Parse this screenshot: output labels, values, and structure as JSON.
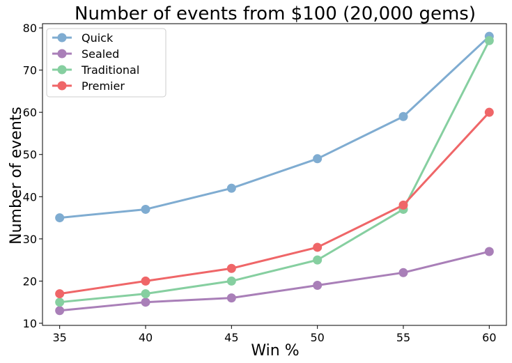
{
  "chart_data": {
    "type": "line",
    "title": "Number of events from $100 (20,000 gems)",
    "xlabel": "Win %",
    "ylabel": "Number of events",
    "x": [
      35,
      40,
      45,
      50,
      55,
      60
    ],
    "xlim": [
      34,
      61
    ],
    "ylim": [
      9.5,
      81
    ],
    "xticks": [
      "35",
      "40",
      "45",
      "50",
      "55",
      "60"
    ],
    "yticks": [
      "10",
      "20",
      "30",
      "40",
      "50",
      "60",
      "70",
      "80"
    ],
    "grid": false,
    "legend_position": "top-left",
    "series": [
      {
        "name": "Quick",
        "color": "#7facd1",
        "values": [
          35,
          37,
          42,
          49,
          59,
          78
        ]
      },
      {
        "name": "Sealed",
        "color": "#a97fb8",
        "values": [
          13,
          15,
          16,
          19,
          22,
          27
        ]
      },
      {
        "name": "Traditional",
        "color": "#86cfa0",
        "values": [
          15,
          17,
          20,
          25,
          37,
          77
        ]
      },
      {
        "name": "Premier",
        "color": "#ef6668",
        "values": [
          17,
          20,
          23,
          28,
          38,
          60
        ]
      }
    ]
  }
}
